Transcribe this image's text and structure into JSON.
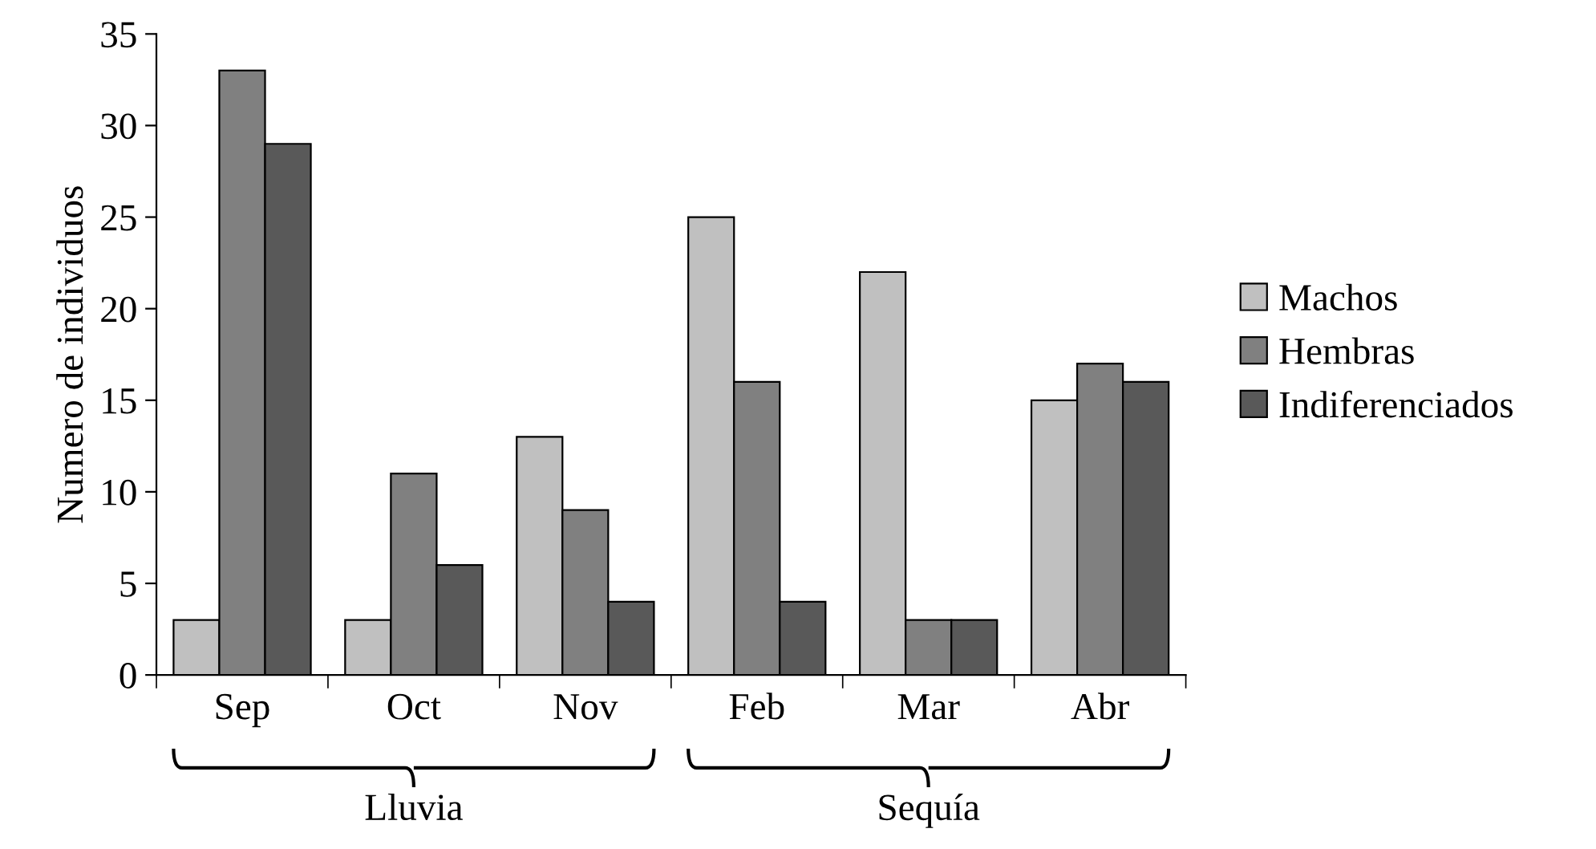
{
  "chart_data": {
    "type": "bar",
    "ylabel": "Numero de individuos",
    "categories": [
      "Sep",
      "Oct",
      "Nov",
      "Feb",
      "Mar",
      "Abr"
    ],
    "series": [
      {
        "name": "Machos",
        "color": "#c0c0c0",
        "values": [
          3,
          3,
          13,
          25,
          22,
          15
        ]
      },
      {
        "name": "Hembras",
        "color": "#808080",
        "values": [
          33,
          11,
          9,
          16,
          3,
          17
        ]
      },
      {
        "name": "Indiferenciados",
        "color": "#595959",
        "values": [
          29,
          6,
          4,
          4,
          3,
          16
        ]
      }
    ],
    "ylim": [
      0,
      35
    ],
    "yticks": [
      0,
      5,
      10,
      15,
      20,
      25,
      30,
      35
    ],
    "grid": false,
    "legend": "right",
    "annotations": [
      "Lluvia",
      "Sequía"
    ]
  }
}
